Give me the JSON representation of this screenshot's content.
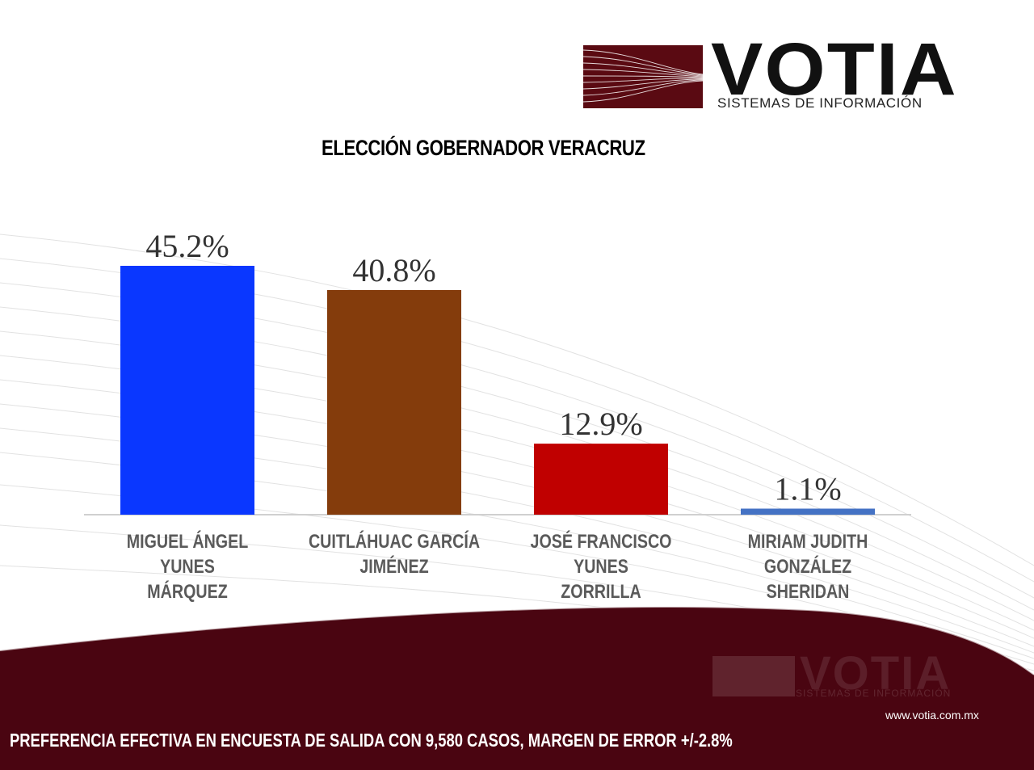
{
  "brand": {
    "name": "VOTIA",
    "tagline": "SISTEMAS DE INFORMACIÓN",
    "url": "www.votia.com.mx",
    "colors": {
      "maroon": "#4a0511",
      "logo_box": "#5a0a12"
    }
  },
  "footer": {
    "note": "PREFERENCIA EFECTIVA EN ENCUESTA DE SALIDA  CON 9,580 CASOS, MARGEN DE ERROR +/-2.8%"
  },
  "chart_data": {
    "type": "bar",
    "title": "ELECCIÓN GOBERNADOR VERACRUZ",
    "categories": [
      "MIGUEL ÁNGEL YUNES MÁRQUEZ",
      "CUITLÁHUAC GARCÍA JIMÉNEZ",
      "JOSÉ FRANCISCO YUNES ZORRILLA",
      "MIRIAM JUDITH GONZÁLEZ SHERIDAN"
    ],
    "category_lines": [
      [
        "MIGUEL ÁNGEL YUNES",
        "MÁRQUEZ"
      ],
      [
        "CUITLÁHUAC GARCÍA",
        "JIMÉNEZ"
      ],
      [
        "JOSÉ FRANCISCO YUNES",
        "ZORRILLA"
      ],
      [
        "MIRIAM JUDITH GONZÁLEZ",
        "SHERIDAN"
      ]
    ],
    "values": [
      45.2,
      40.8,
      12.9,
      1.1
    ],
    "data_labels": [
      "45.2%",
      "40.8%",
      "12.9%",
      "1.1%"
    ],
    "bar_colors": [
      "#0a37ff",
      "#843c0c",
      "#c00000",
      "#4472c4"
    ],
    "unit": "%",
    "ylim": [
      0,
      50
    ],
    "grid": false,
    "legend": "none"
  }
}
